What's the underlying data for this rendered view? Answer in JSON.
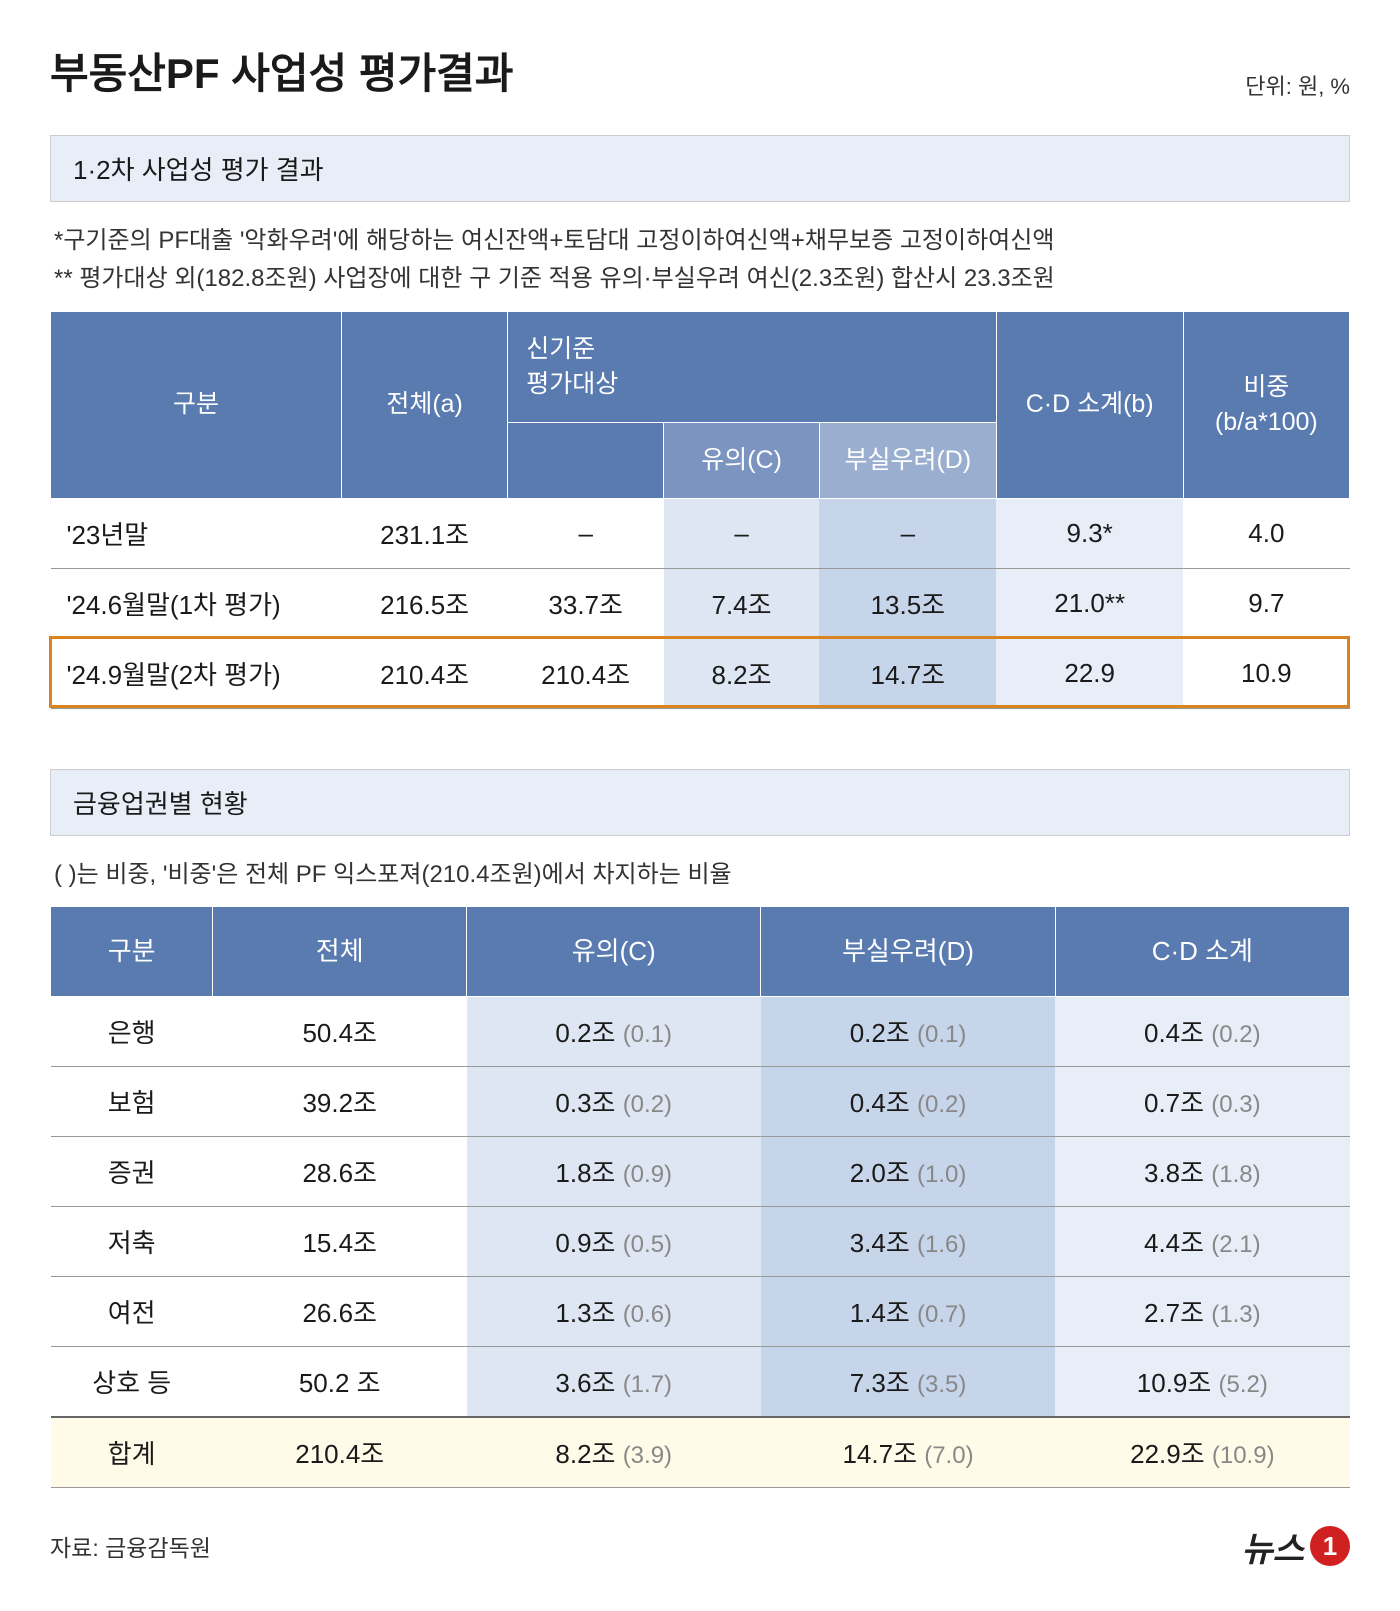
{
  "title": "부동산PF 사업성 평가결과",
  "unit_text": "단위:  원, %",
  "section1": {
    "header": "1·2차 사업성 평가 결과",
    "note1": "*구기준의 PF대출 '악화우려'에 해당하는 여신잔액+토담대 고정이하여신액+채무보증 고정이하여신액",
    "note2": "** 평가대상 외(182.8조원) 사업장에 대한 구 기준 적용 유의·부실우려 여신(2.3조원) 합산시 23.3조원",
    "columns": {
      "c0": "구분",
      "c1": "전체(a)",
      "c2": "신기준\n평가대상",
      "c3": "유의(C)",
      "c4": "부실우려(D)",
      "c5": "C·D 소계(b)",
      "c6": "비중\n(b/a*100)"
    },
    "rows": [
      {
        "cat": "'23년말",
        "a": "231.1조",
        "b": "–",
        "c": "–",
        "d": "–",
        "e": "9.3*",
        "f": "4.0"
      },
      {
        "cat": "'24.6월말(1차 평가)",
        "a": "216.5조",
        "b": "33.7조",
        "c": "7.4조",
        "d": "13.5조",
        "e": "21.0**",
        "f": "9.7"
      },
      {
        "cat": "'24.9월말(2차 평가)",
        "a": "210.4조",
        "b": "210.4조",
        "c": "8.2조",
        "d": "14.7조",
        "e": "22.9",
        "f": "10.9"
      }
    ],
    "colors": {
      "th_main": "#5a7bb0",
      "th_sub_c": "#7b95c0",
      "th_sub_d": "#9aafd0",
      "cell_c": "#dde6f2",
      "cell_d": "#c6d5ea",
      "cell_e": "#e8eef7",
      "highlight_border": "#d9841f"
    }
  },
  "section2": {
    "header": "금융업권별 현황",
    "note": "(  )는 비중, '비중'은 전체 PF 익스포져(210.4조원)에서 차지하는 비율",
    "columns": {
      "c0": "구분",
      "c1": "전체",
      "c2": "유의(C)",
      "c3": "부실우려(D)",
      "c4": "C·D 소계"
    },
    "rows": [
      {
        "cat": "은행",
        "total": "50.4조",
        "c_v": "0.2조",
        "c_r": "(0.1)",
        "d_v": "0.2조",
        "d_r": "(0.1)",
        "e_v": "0.4조",
        "e_r": "(0.2)"
      },
      {
        "cat": "보험",
        "total": "39.2조",
        "c_v": "0.3조",
        "c_r": "(0.2)",
        "d_v": "0.4조",
        "d_r": "(0.2)",
        "e_v": "0.7조",
        "e_r": "(0.3)"
      },
      {
        "cat": "증권",
        "total": "28.6조",
        "c_v": "1.8조",
        "c_r": "(0.9)",
        "d_v": "2.0조",
        "d_r": "(1.0)",
        "e_v": "3.8조",
        "e_r": "(1.8)"
      },
      {
        "cat": "저축",
        "total": "15.4조",
        "c_v": "0.9조",
        "c_r": "(0.5)",
        "d_v": "3.4조",
        "d_r": "(1.6)",
        "e_v": "4.4조",
        "e_r": "(2.1)"
      },
      {
        "cat": "여전",
        "total": "26.6조",
        "c_v": "1.3조",
        "c_r": "(0.6)",
        "d_v": "1.4조",
        "d_r": "(0.7)",
        "e_v": "2.7조",
        "e_r": "(1.3)"
      },
      {
        "cat": "상호 등",
        "total": "50.2 조",
        "c_v": "3.6조",
        "c_r": "(1.7)",
        "d_v": "7.3조",
        "d_r": "(3.5)",
        "e_v": "10.9조",
        "e_r": "(5.2)"
      }
    ],
    "total_row": {
      "cat": "합계",
      "total": "210.4조",
      "c_v": "8.2조",
      "c_r": "(3.9)",
      "d_v": "14.7조",
      "d_r": "(7.0)",
      "e_v": "22.9조",
      "e_r": "(10.9)"
    },
    "colors": {
      "th": "#5a7bb0",
      "cell_c": "#dde6f2",
      "cell_d": "#c6d5ea",
      "cell_e": "#e8eef7",
      "total_bg": "#fffbe8"
    }
  },
  "source": "자료: 금융감독원",
  "logo_text": "뉴스",
  "logo_num": "1"
}
